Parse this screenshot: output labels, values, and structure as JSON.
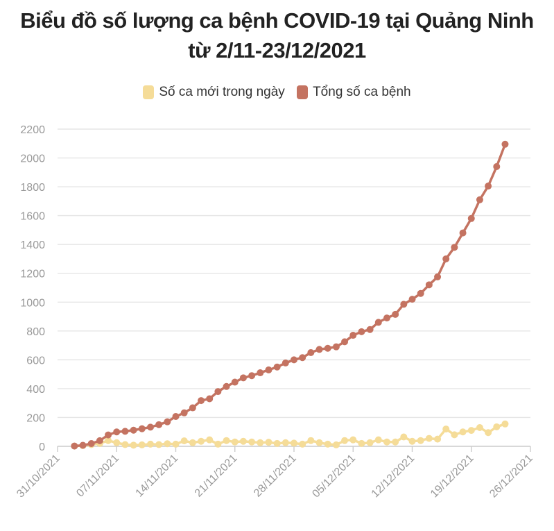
{
  "chart_data": {
    "type": "line",
    "title_line1": "Biểu đồ số lượng ca bệnh COVID-19 tại Quảng Ninh",
    "title_line2": "từ 2/11-23/12/2021",
    "xlabel": "",
    "ylabel": "",
    "ylim": [
      0,
      2200
    ],
    "yticks": [
      "0",
      "200",
      "400",
      "600",
      "800",
      "1000",
      "1200",
      "1400",
      "1600",
      "1800",
      "2000",
      "2200"
    ],
    "xlim_day": [
      0,
      56
    ],
    "xticks": [
      {
        "day": 0,
        "label": "31/10/2021"
      },
      {
        "day": 7,
        "label": "07/11/2021"
      },
      {
        "day": 14,
        "label": "14/11/2021"
      },
      {
        "day": 21,
        "label": "21/11/2021"
      },
      {
        "day": 28,
        "label": "28/11/2021"
      },
      {
        "day": 35,
        "label": "05/12/2021"
      },
      {
        "day": 42,
        "label": "12/12/2021"
      },
      {
        "day": 49,
        "label": "19/12/2021"
      },
      {
        "day": 56,
        "label": "26/12/2021"
      }
    ],
    "grid": true,
    "legend_position": "top-center",
    "series": [
      {
        "name": "Số ca mới trong ngày",
        "color": "#f5dc98",
        "values": [
          2,
          5,
          12,
          20,
          40,
          25,
          12,
          8,
          10,
          15,
          12,
          18,
          15,
          38,
          25,
          35,
          45,
          15,
          40,
          30,
          35,
          30,
          25,
          28,
          20,
          25,
          22,
          15,
          40,
          25,
          15,
          10,
          40,
          45,
          20,
          25,
          45,
          30,
          30,
          65,
          35,
          40,
          55,
          50,
          120,
          80,
          100,
          110,
          130,
          95,
          135,
          155
        ]
      },
      {
        "name": "Tổng số ca bệnh",
        "color": "#c47361",
        "values": [
          2,
          7,
          19,
          39,
          79,
          100,
          104,
          112,
          122,
          133,
          150,
          170,
          207,
          232,
          267,
          317,
          330,
          380,
          415,
          445,
          475,
          490,
          510,
          530,
          550,
          578,
          600,
          615,
          650,
          672,
          680,
          690,
          725,
          770,
          795,
          810,
          860,
          890,
          915,
          985,
          1020,
          1060,
          1120,
          1175,
          1300,
          1380,
          1480,
          1580,
          1710,
          1805,
          1940,
          2095
        ]
      }
    ]
  }
}
